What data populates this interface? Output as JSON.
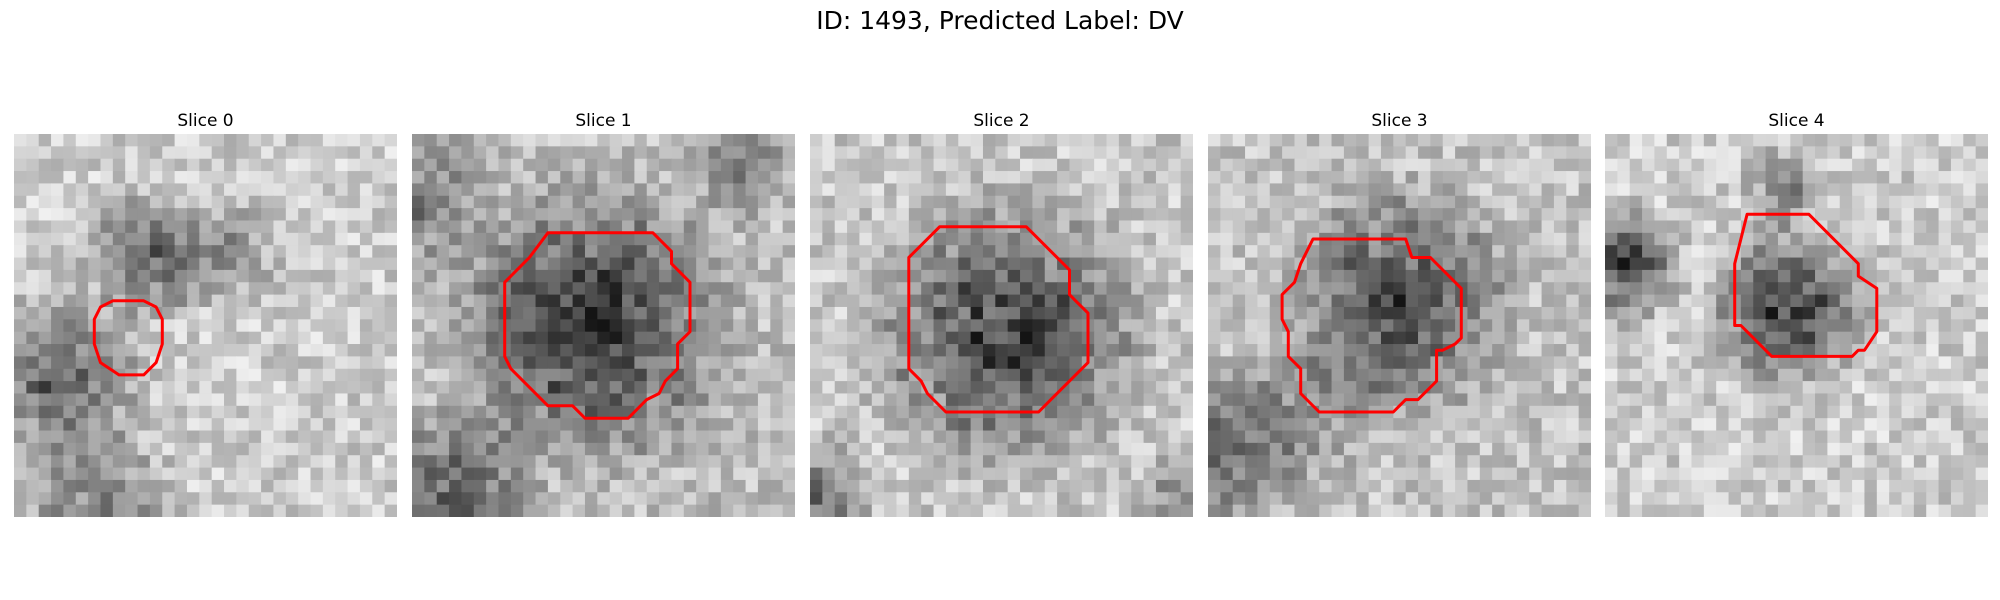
{
  "figure": {
    "title": "ID: 1493, Predicted Label: DV"
  },
  "panels": [
    {
      "title": "Slice 0"
    },
    {
      "title": "Slice 1"
    },
    {
      "title": "Slice 2"
    },
    {
      "title": "Slice 3"
    },
    {
      "title": "Slice 4"
    }
  ],
  "colors": {
    "contour": "#ff0000",
    "background": "#ffffff",
    "colormap": "grayscale"
  }
}
